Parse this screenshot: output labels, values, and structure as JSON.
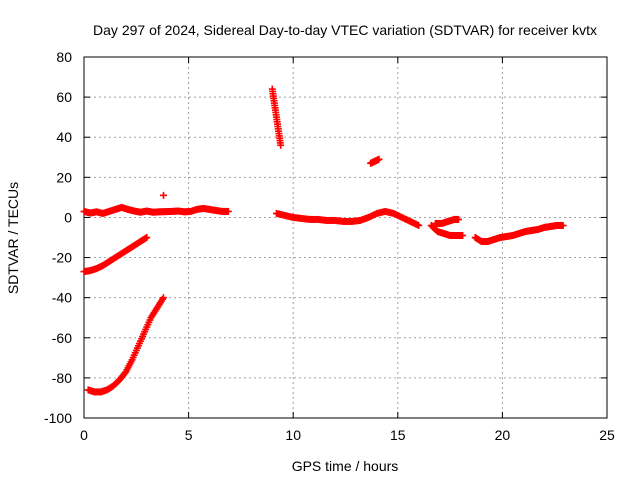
{
  "colors": {
    "series": "#ff0000",
    "grid": "#a0a0a0",
    "axis": "#000000",
    "background": "#ffffff"
  },
  "chart_data": {
    "type": "scatter",
    "title": "Day 297 of 2024, Sidereal Day-to-day VTEC variation (SDTVAR) for receiver kvtx",
    "xlabel": "GPS time / hours",
    "ylabel": "SDTVAR / TECUs",
    "xlim": [
      0,
      25
    ],
    "ylim": [
      -100,
      80
    ],
    "xticks": [
      0,
      5,
      10,
      15,
      20,
      25
    ],
    "yticks": [
      -100,
      -80,
      -60,
      -40,
      -20,
      0,
      20,
      40,
      60,
      80
    ],
    "grid": true,
    "legend": "none",
    "marker": "+",
    "series": [
      {
        "segments": [
          {
            "x": [
              0.0,
              0.3,
              0.6,
              0.9,
              1.2,
              1.5,
              1.8,
              2.1,
              2.4,
              2.7,
              3.0,
              3.3,
              3.6,
              3.9,
              4.2,
              4.5,
              4.8,
              5.1,
              5.4,
              5.7,
              6.0,
              6.3,
              6.6,
              6.9
            ],
            "y": [
              3.0,
              2.2,
              2.8,
              2.0,
              3.0,
              4.0,
              5.0,
              4.0,
              3.2,
              2.6,
              3.2,
              2.6,
              2.8,
              2.9,
              3.0,
              3.2,
              2.8,
              3.0,
              4.0,
              4.5,
              4.0,
              3.5,
              3.0,
              3.0
            ]
          },
          {
            "x": [
              0.0,
              0.3,
              0.6,
              0.9,
              1.2,
              1.5,
              1.8,
              2.1,
              2.4,
              2.7,
              3.0
            ],
            "y": [
              -27,
              -26.5,
              -25.5,
              -24,
              -22,
              -20,
              -18,
              -16,
              -14,
              -12,
              -10
            ]
          },
          {
            "x": [
              0.2,
              0.5,
              0.8,
              1.1,
              1.4,
              1.7,
              2.0,
              2.3,
              2.6,
              2.9,
              3.2,
              3.5,
              3.8
            ],
            "y": [
              -86,
              -87,
              -87,
              -86,
              -84,
              -81,
              -77,
              -71,
              -64,
              -57,
              -50,
              -45,
              -40
            ]
          },
          {
            "x": [
              3.8
            ],
            "y": [
              11
            ]
          },
          {
            "x": [
              9.0,
              9.1,
              9.2,
              9.3,
              9.4
            ],
            "y": [
              64,
              57,
              50,
              43,
              36
            ]
          },
          {
            "x": [
              9.2,
              9.6,
              10.0,
              10.4,
              10.8,
              11.2,
              11.6,
              12.0,
              12.4,
              12.8,
              13.2,
              13.6,
              14.0,
              14.4,
              14.8,
              15.2,
              15.6,
              16.0
            ],
            "y": [
              2,
              1,
              0,
              -0.5,
              -1,
              -1,
              -1.5,
              -1.5,
              -2,
              -2,
              -1.5,
              0,
              2,
              3,
              2,
              0,
              -2,
              -4
            ]
          },
          {
            "x": [
              13.7,
              13.9,
              14.1
            ],
            "y": [
              27,
              28,
              29
            ]
          },
          {
            "x": [
              16.6,
              16.9,
              17.2,
              17.5,
              17.8,
              18.1
            ],
            "y": [
              -4,
              -7,
              -8,
              -9,
              -9,
              -9
            ]
          },
          {
            "x": [
              16.8,
              17.1,
              17.4,
              17.7,
              17.9
            ],
            "y": [
              -3,
              -3,
              -2,
              -1,
              -1
            ]
          },
          {
            "x": [
              18.7,
              19.0,
              19.3,
              19.6,
              19.9,
              20.2,
              20.5,
              20.8,
              21.1,
              21.4,
              21.7,
              22.0,
              22.3,
              22.6,
              22.9
            ],
            "y": [
              -10,
              -12,
              -12,
              -11,
              -10,
              -9.5,
              -9,
              -8,
              -7,
              -6.5,
              -6,
              -5,
              -4.5,
              -4,
              -4
            ]
          }
        ]
      }
    ]
  }
}
